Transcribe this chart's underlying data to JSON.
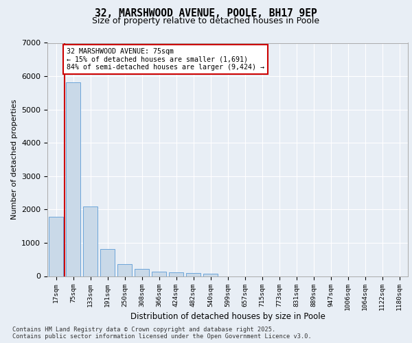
{
  "title_line1": "32, MARSHWOOD AVENUE, POOLE, BH17 9EP",
  "title_line2": "Size of property relative to detached houses in Poole",
  "xlabel": "Distribution of detached houses by size in Poole",
  "ylabel": "Number of detached properties",
  "categories": [
    "17sqm",
    "75sqm",
    "133sqm",
    "191sqm",
    "250sqm",
    "308sqm",
    "366sqm",
    "424sqm",
    "482sqm",
    "540sqm",
    "599sqm",
    "657sqm",
    "715sqm",
    "773sqm",
    "831sqm",
    "889sqm",
    "947sqm",
    "1006sqm",
    "1064sqm",
    "1122sqm",
    "1180sqm"
  ],
  "values": [
    1780,
    5820,
    2090,
    810,
    370,
    215,
    130,
    110,
    90,
    65,
    0,
    0,
    0,
    0,
    0,
    0,
    0,
    0,
    0,
    0,
    0
  ],
  "bar_color": "#c9d9e8",
  "bar_edge_color": "#5b9bd5",
  "vline_x": 0.5,
  "vline_color": "#cc0000",
  "annotation_text": "32 MARSHWOOD AVENUE: 75sqm\n← 15% of detached houses are smaller (1,691)\n84% of semi-detached houses are larger (9,424) →",
  "annotation_box_color": "#ffffff",
  "annotation_box_edge": "#cc0000",
  "ylim": [
    0,
    7000
  ],
  "yticks": [
    0,
    1000,
    2000,
    3000,
    4000,
    5000,
    6000,
    7000
  ],
  "bg_color": "#e8eef5",
  "plot_bg_color": "#e8eef5",
  "grid_color": "#ffffff",
  "footer_line1": "Contains HM Land Registry data © Crown copyright and database right 2025.",
  "footer_line2": "Contains public sector information licensed under the Open Government Licence v3.0."
}
